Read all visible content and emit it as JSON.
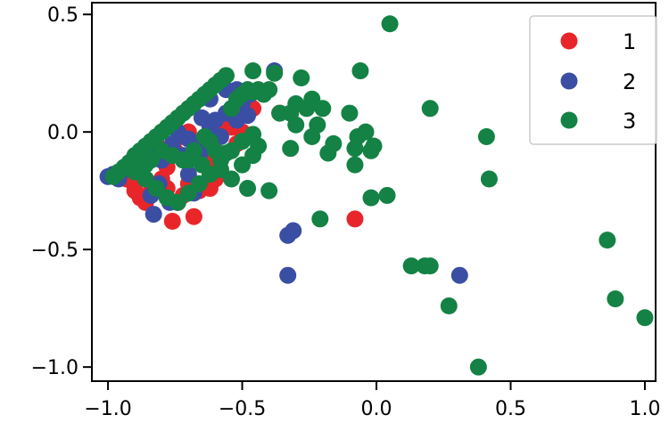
{
  "chart_data": {
    "type": "scatter",
    "xlim": [
      -1.06,
      1.04
    ],
    "ylim": [
      -1.06,
      0.55
    ],
    "grid": false,
    "legend_position": "top-right",
    "x_ticks": [
      {
        "value": -1.0,
        "label": "−1.0"
      },
      {
        "value": -0.5,
        "label": "−0.5"
      },
      {
        "value": 0.0,
        "label": "0.0"
      },
      {
        "value": 0.5,
        "label": "0.5"
      },
      {
        "value": 1.0,
        "label": "1.0"
      }
    ],
    "y_ticks": [
      {
        "value": 0.5,
        "label": "0.5"
      },
      {
        "value": 0.0,
        "label": "0.0"
      },
      {
        "value": -0.5,
        "label": "−0.5"
      },
      {
        "value": -1.0,
        "label": "−1.0"
      }
    ],
    "series": [
      {
        "name": "1",
        "color": "#e8262a",
        "points": [
          [
            -0.97,
            -0.19
          ],
          [
            -0.95,
            -0.18
          ],
          [
            -0.93,
            -0.2
          ],
          [
            -0.91,
            -0.21
          ],
          [
            -0.9,
            -0.25
          ],
          [
            -0.88,
            -0.28
          ],
          [
            -0.86,
            -0.3
          ],
          [
            -0.84,
            -0.25
          ],
          [
            -0.82,
            -0.23
          ],
          [
            -0.8,
            -0.2
          ],
          [
            -0.78,
            -0.24
          ],
          [
            -0.76,
            -0.38
          ],
          [
            -0.74,
            -0.3
          ],
          [
            -0.72,
            -0.27
          ],
          [
            -0.7,
            -0.22
          ],
          [
            -0.68,
            -0.36
          ],
          [
            -0.66,
            -0.25
          ],
          [
            -0.92,
            -0.13
          ],
          [
            -0.88,
            -0.1
          ],
          [
            -0.85,
            -0.08
          ],
          [
            -0.82,
            -0.05
          ],
          [
            -0.8,
            -0.12
          ],
          [
            -0.78,
            -0.15
          ],
          [
            -0.75,
            -0.08
          ],
          [
            -0.72,
            -0.02
          ],
          [
            -0.7,
            0.0
          ],
          [
            -0.68,
            -0.05
          ],
          [
            -0.65,
            -0.1
          ],
          [
            -0.62,
            -0.12
          ],
          [
            -0.6,
            -0.03
          ],
          [
            -0.58,
            0.02
          ],
          [
            -0.56,
            0.05
          ],
          [
            -0.54,
            0.02
          ],
          [
            -0.52,
            -0.05
          ],
          [
            -0.5,
            0.0
          ],
          [
            -0.48,
            0.08
          ],
          [
            -0.46,
            0.1
          ],
          [
            -0.6,
            -0.2
          ],
          [
            -0.62,
            -0.24
          ],
          [
            -0.36,
            0.08
          ],
          [
            -0.08,
            -0.37
          ]
        ]
      },
      {
        "name": "2",
        "color": "#3a4ea4",
        "points": [
          [
            -1.0,
            -0.19
          ],
          [
            -0.98,
            -0.18
          ],
          [
            -0.96,
            -0.2
          ],
          [
            -0.94,
            -0.16
          ],
          [
            -0.92,
            -0.14
          ],
          [
            -0.9,
            -0.12
          ],
          [
            -0.88,
            -0.17
          ],
          [
            -0.86,
            -0.2
          ],
          [
            -0.84,
            -0.27
          ],
          [
            -0.83,
            -0.35
          ],
          [
            -0.81,
            -0.22
          ],
          [
            -0.8,
            -0.12
          ],
          [
            -0.78,
            -0.08
          ],
          [
            -0.76,
            -0.05
          ],
          [
            -0.74,
            0.0
          ],
          [
            -0.72,
            -0.1
          ],
          [
            -0.7,
            -0.18
          ],
          [
            -0.68,
            -0.26
          ],
          [
            -0.66,
            -0.1
          ],
          [
            -0.64,
            -0.05
          ],
          [
            -0.62,
            0.02
          ],
          [
            -0.6,
            0.05
          ],
          [
            -0.58,
            -0.02
          ],
          [
            -0.56,
            0.08
          ],
          [
            -0.54,
            0.1
          ],
          [
            -0.52,
            0.05
          ],
          [
            -0.5,
            0.12
          ],
          [
            -0.48,
            0.07
          ],
          [
            -0.62,
            0.14
          ],
          [
            -0.56,
            0.18
          ],
          [
            -0.52,
            0.18
          ],
          [
            -0.47,
            0.16
          ],
          [
            -0.38,
            0.26
          ],
          [
            -0.33,
            -0.44
          ],
          [
            -0.31,
            -0.42
          ],
          [
            -0.33,
            -0.61
          ],
          [
            0.31,
            -0.61
          ],
          [
            -0.82,
            -0.1
          ],
          [
            -0.77,
            -0.3
          ],
          [
            -0.7,
            -0.03
          ],
          [
            -0.65,
            0.06
          ]
        ]
      },
      {
        "name": "3",
        "color": "#138244",
        "points": [
          [
            -0.98,
            -0.19
          ],
          [
            -0.96,
            -0.17
          ],
          [
            -0.94,
            -0.15
          ],
          [
            -0.92,
            -0.13
          ],
          [
            -0.9,
            -0.1
          ],
          [
            -0.88,
            -0.08
          ],
          [
            -0.86,
            -0.06
          ],
          [
            -0.84,
            -0.04
          ],
          [
            -0.82,
            -0.02
          ],
          [
            -0.8,
            0.0
          ],
          [
            -0.78,
            0.02
          ],
          [
            -0.76,
            0.04
          ],
          [
            -0.74,
            0.06
          ],
          [
            -0.72,
            0.08
          ],
          [
            -0.7,
            0.1
          ],
          [
            -0.68,
            0.12
          ],
          [
            -0.66,
            0.14
          ],
          [
            -0.64,
            0.16
          ],
          [
            -0.62,
            0.18
          ],
          [
            -0.6,
            0.2
          ],
          [
            -0.58,
            0.22
          ],
          [
            -0.56,
            0.24
          ],
          [
            -0.54,
            0.1
          ],
          [
            -0.52,
            0.14
          ],
          [
            -0.5,
            0.16
          ],
          [
            -0.48,
            0.18
          ],
          [
            -0.46,
            0.17
          ],
          [
            -0.44,
            0.18
          ],
          [
            -0.42,
            0.16
          ],
          [
            -0.4,
            0.18
          ],
          [
            -0.9,
            -0.17
          ],
          [
            -0.86,
            -0.2
          ],
          [
            -0.82,
            -0.24
          ],
          [
            -0.78,
            -0.28
          ],
          [
            -0.74,
            -0.3
          ],
          [
            -0.7,
            -0.26
          ],
          [
            -0.66,
            -0.22
          ],
          [
            -0.62,
            -0.18
          ],
          [
            -0.58,
            -0.12
          ],
          [
            -0.54,
            -0.08
          ],
          [
            -0.5,
            -0.04
          ],
          [
            -0.46,
            -0.01
          ],
          [
            -0.58,
            -0.16
          ],
          [
            -0.54,
            -0.2
          ],
          [
            -0.5,
            -0.14
          ],
          [
            -0.46,
            -0.1
          ],
          [
            -0.44,
            -0.06
          ],
          [
            -0.48,
            -0.24
          ],
          [
            -0.56,
            -0.09
          ],
          [
            -0.6,
            -0.08
          ],
          [
            -0.64,
            -0.02
          ],
          [
            -0.68,
            -0.08
          ],
          [
            -0.72,
            -0.12
          ],
          [
            -0.8,
            -0.08
          ],
          [
            -0.84,
            -0.12
          ],
          [
            -0.86,
            -0.14
          ],
          [
            -0.76,
            -0.1
          ],
          [
            -0.7,
            -0.12
          ],
          [
            -0.65,
            -0.14
          ],
          [
            -0.62,
            -0.04
          ],
          [
            -0.3,
            0.12
          ],
          [
            -0.28,
            0.23
          ],
          [
            -0.26,
            0.1
          ],
          [
            -0.24,
            0.14
          ],
          [
            -0.22,
            0.03
          ],
          [
            -0.3,
            0.03
          ],
          [
            -0.24,
            -0.02
          ],
          [
            -0.18,
            -0.09
          ],
          [
            -0.36,
            0.08
          ],
          [
            -0.32,
            0.08
          ],
          [
            -0.2,
            0.1
          ],
          [
            -0.32,
            -0.07
          ],
          [
            -0.16,
            -0.05
          ],
          [
            -0.06,
            0.26
          ],
          [
            -0.1,
            0.08
          ],
          [
            -0.08,
            -0.07
          ],
          [
            -0.07,
            -0.02
          ],
          [
            -0.04,
            0.0
          ],
          [
            -0.02,
            -0.08
          ],
          [
            -0.01,
            -0.06
          ],
          [
            -0.08,
            -0.14
          ],
          [
            -0.02,
            -0.28
          ],
          [
            0.04,
            -0.27
          ],
          [
            0.05,
            0.46
          ],
          [
            -0.21,
            -0.37
          ],
          [
            0.13,
            -0.57
          ],
          [
            0.18,
            -0.57
          ],
          [
            0.2,
            -0.57
          ],
          [
            0.27,
            -0.74
          ],
          [
            0.2,
            0.1
          ],
          [
            0.41,
            -0.02
          ],
          [
            0.42,
            -0.2
          ],
          [
            0.38,
            -1.0
          ],
          [
            0.86,
            -0.46
          ],
          [
            0.89,
            -0.71
          ],
          [
            1.0,
            -0.79
          ],
          [
            -0.4,
            -0.25
          ],
          [
            -0.46,
            0.26
          ],
          [
            -0.38,
            0.25
          ]
        ]
      }
    ]
  }
}
